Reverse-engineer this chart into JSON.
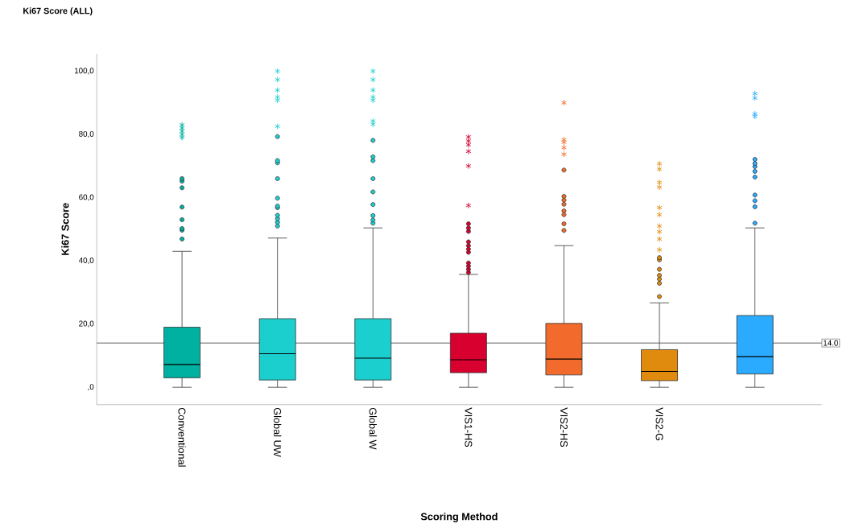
{
  "chart_data": {
    "type": "box",
    "title": "Ki67 Score (ALL)",
    "xlabel": "Scoring Method",
    "ylabel": "Ki67 Score",
    "categories": [
      "Conventional",
      "Global UW",
      "Global W",
      "VIS1-HS",
      "VIS2-HS",
      "VIS2-G",
      null
    ],
    "colors": [
      "#00b0a0",
      "#1ccfcf",
      "#1ccfcf",
      "#d7002e",
      "#f26b2c",
      "#e08a0e",
      "#2aabff"
    ],
    "boxes": [
      {
        "low": 0,
        "q1": 3,
        "median": 7.2,
        "q3": 19,
        "high": 43,
        "outliers": [
          46.9,
          49.7,
          50.2,
          53,
          57,
          63.1,
          65.2,
          66,
          79,
          80,
          81,
          82,
          83
        ]
      },
      {
        "low": 0,
        "q1": 2.3,
        "median": 10.6,
        "q3": 21.7,
        "high": 47.2,
        "outliers": [
          51,
          52.2,
          53.3,
          54.4,
          56.8,
          57.3,
          59.8,
          66,
          71,
          71.7,
          79.3,
          82.5,
          90.8,
          91.8,
          94,
          97.3,
          100
        ]
      },
      {
        "low": 0,
        "q1": 2.3,
        "median": 9.2,
        "q3": 21.7,
        "high": 50.4,
        "outliers": [
          51.9,
          52.9,
          54.3,
          57.8,
          61.8,
          66,
          71.7,
          72.9,
          78.1,
          83.2,
          84.2,
          90.8,
          91.8,
          94,
          97.3,
          100
        ]
      },
      {
        "low": 0,
        "q1": 4.6,
        "median": 8.7,
        "q3": 17.1,
        "high": 35.7,
        "outliers": [
          36.3,
          37.3,
          38.3,
          39.3,
          42.7,
          43.7,
          44.8,
          46,
          49.3,
          50.4,
          51.7,
          57.5,
          70,
          74.6,
          76.7,
          77.9,
          79.2
        ]
      },
      {
        "low": 0,
        "q1": 3.9,
        "median": 8.9,
        "q3": 20.2,
        "high": 44.8,
        "outliers": [
          49.6,
          51.7,
          54.6,
          55.8,
          57.9,
          59.2,
          60.4,
          68.7,
          73.7,
          75.8,
          77.5,
          78.3,
          90
        ]
      },
      {
        "low": 0,
        "q1": 2.1,
        "median": 5,
        "q3": 11.9,
        "high": 26.7,
        "outliers": [
          28.7,
          32.9,
          34.2,
          35.4,
          37.3,
          40.3,
          41,
          43.5,
          46.9,
          49.2,
          51,
          54.6,
          56.8,
          63.3,
          64.8,
          69,
          70.7
        ]
      },
      {
        "low": 0,
        "q1": 4.2,
        "median": 9.7,
        "q3": 22.7,
        "high": 50.4,
        "outliers": [
          51.9,
          57.1,
          59,
          60.8,
          66.5,
          68.3,
          69.8,
          70.8,
          72.1,
          85.7,
          86.5,
          91.5,
          92.9
        ]
      }
    ],
    "ylim": [
      -5.5,
      105.5
    ],
    "yticks": [
      {
        "value": 0,
        "label": ",0"
      },
      {
        "value": 20,
        "label": "20,0"
      },
      {
        "value": 40,
        "label": "40,0"
      },
      {
        "value": 60,
        "label": "60,0"
      },
      {
        "value": 80,
        "label": "80,0"
      },
      {
        "value": 100,
        "label": "100,0"
      }
    ],
    "ref_lines": [
      {
        "axis": "y",
        "value": 14.0,
        "label": "14.0"
      }
    ]
  }
}
